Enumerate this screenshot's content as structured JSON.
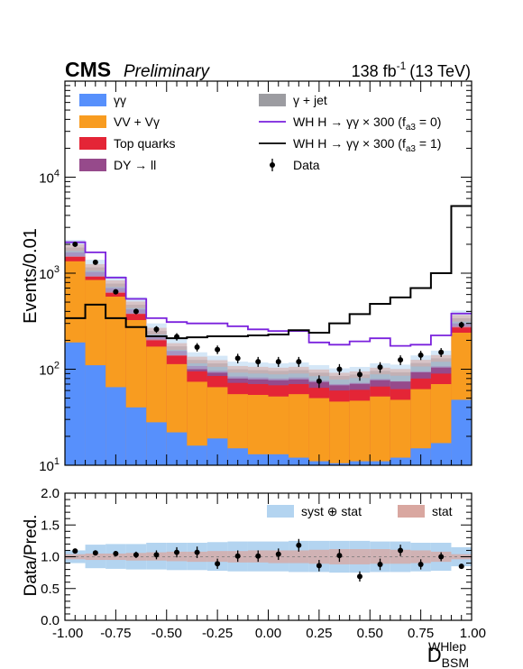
{
  "header": {
    "experiment": "CMS",
    "status": "Preliminary",
    "lumi": "138 fb",
    "lumi_exp": "-1",
    "energy": "(13 TeV)"
  },
  "colors": {
    "gg": "#5790fc",
    "vv": "#f89c20",
    "top": "#e42536",
    "dy": "#964a8b",
    "gjet": "#9c9ca1",
    "sig0": "#7a21dd",
    "sig1": "#000000",
    "syst": "#b3d4f0",
    "stat": "#d9a7a0"
  },
  "chart_data": [
    {
      "type": "bar",
      "subtype": "stacked-histogram",
      "ylabel": "Events/0.01",
      "yscale": "log",
      "ylim": [
        10,
        100000
      ],
      "xlim": [
        -1.0,
        1.0
      ],
      "bin_edges": [
        -1.0,
        -0.9,
        -0.8,
        -0.7,
        -0.6,
        -0.5,
        -0.4,
        -0.3,
        -0.2,
        -0.1,
        0.0,
        0.1,
        0.2,
        0.3,
        0.4,
        0.5,
        0.6,
        0.7,
        0.8,
        0.9,
        1.0
      ],
      "legend_placement": "top",
      "series": [
        {
          "name": "γγ",
          "key": "gg",
          "kind": "stack",
          "values": [
            190,
            110,
            65,
            40,
            28,
            22,
            16,
            19,
            15,
            13,
            13,
            12,
            11,
            10.5,
            11,
            11,
            12,
            15,
            17,
            48
          ]
        },
        {
          "name": "VV + Vγ",
          "key": "vv",
          "kind": "stack",
          "values": [
            1330,
            850,
            570,
            325,
            172,
            113,
            74,
            65,
            55,
            54,
            52,
            55,
            50,
            46,
            47,
            52,
            48,
            62,
            70,
            240
          ]
        },
        {
          "name": "Top quarks",
          "key": "top",
          "kind": "stack",
          "values": [
            1500,
            930,
            640,
            380,
            205,
            140,
            95,
            85,
            72,
            70,
            68,
            70,
            64,
            60,
            61,
            66,
            62,
            80,
            90,
            280
          ]
        },
        {
          "name": "DY → ll",
          "key": "dy",
          "kind": "stack",
          "values": [
            1650,
            1030,
            700,
            420,
            225,
            155,
            108,
            96,
            84,
            82,
            80,
            82,
            76,
            70,
            72,
            79,
            75,
            95,
            107,
            300
          ]
        },
        {
          "name": "γ + jet",
          "key": "gjet",
          "kind": "stack",
          "values": [
            1850,
            1150,
            780,
            470,
            250,
            173,
            125,
            115,
            100,
            98,
            96,
            98,
            92,
            85,
            88,
            96,
            93,
            116,
            130,
            340
          ]
        },
        {
          "name": "WH H → γγ × 300 (f",
          "sub": "a3",
          "tail": " = 0)",
          "key": "sig0",
          "kind": "line",
          "values": [
            2100,
            1650,
            900,
            540,
            340,
            310,
            300,
            300,
            280,
            260,
            250,
            250,
            190,
            180,
            195,
            210,
            175,
            180,
            225,
            380
          ]
        },
        {
          "name": "WH H → γγ × 300 (f",
          "sub": "a3",
          "tail": " = 1)",
          "key": "sig1",
          "kind": "line",
          "values": [
            340,
            470,
            340,
            275,
            220,
            210,
            215,
            220,
            220,
            225,
            230,
            255,
            240,
            300,
            375,
            480,
            560,
            700,
            1000,
            5000
          ]
        },
        {
          "name": "Data",
          "key": "data",
          "kind": "points",
          "values": [
            2000,
            1300,
            640,
            400,
            260,
            218,
            170,
            160,
            130,
            120,
            120,
            120,
            75,
            100,
            88,
            105,
            125,
            140,
            150,
            290
          ]
        }
      ],
      "syst_band_frac": 0.2,
      "stat_band_frac": 0.08
    },
    {
      "type": "scatter",
      "subtype": "ratio",
      "xlabel": "D",
      "xlabel_sub": "BSM",
      "xlabel_sup": "WHlep",
      "ylabel": "Data/Pred.",
      "ylim": [
        0.0,
        2.0
      ],
      "xlim": [
        -1.0,
        1.0
      ],
      "x_ticks": [
        "-1.00",
        "-0.75",
        "-0.50",
        "-0.25",
        "0.00",
        "0.25",
        "0.50",
        "0.75",
        "1.00"
      ],
      "y_ticks": [
        "0.0",
        "0.5",
        "1.0",
        "1.5",
        "2.0"
      ],
      "x": [
        -0.95,
        -0.85,
        -0.75,
        -0.65,
        -0.55,
        -0.45,
        -0.35,
        -0.25,
        -0.15,
        -0.05,
        0.05,
        0.15,
        0.25,
        0.35,
        0.45,
        0.55,
        0.65,
        0.75,
        0.85,
        0.95
      ],
      "values": [
        1.09,
        1.06,
        1.05,
        1.03,
        1.03,
        1.07,
        1.07,
        0.89,
        1.01,
        1.01,
        1.04,
        1.18,
        0.86,
        1.02,
        0.69,
        0.88,
        1.1,
        0.88,
        1.0,
        0.85
      ],
      "errors": [
        0.03,
        0.04,
        0.04,
        0.05,
        0.07,
        0.08,
        0.09,
        0.08,
        0.09,
        0.09,
        0.09,
        0.1,
        0.09,
        0.1,
        0.08,
        0.09,
        0.09,
        0.08,
        0.07,
        0.04
      ],
      "band_legend": [
        {
          "name": "syst ⊕ stat",
          "key": "syst"
        },
        {
          "name": "stat",
          "key": "stat"
        }
      ],
      "syst_band": [
        [
          0.9,
          1.1
        ],
        [
          0.82,
          1.19
        ],
        [
          0.81,
          1.2
        ],
        [
          0.8,
          1.2
        ],
        [
          0.8,
          1.22
        ],
        [
          0.79,
          1.22
        ],
        [
          0.79,
          1.22
        ],
        [
          0.78,
          1.23
        ],
        [
          0.77,
          1.24
        ],
        [
          0.77,
          1.24
        ],
        [
          0.77,
          1.24
        ],
        [
          0.76,
          1.25
        ],
        [
          0.76,
          1.25
        ],
        [
          0.75,
          1.25
        ],
        [
          0.75,
          1.25
        ],
        [
          0.76,
          1.24
        ],
        [
          0.76,
          1.24
        ],
        [
          0.77,
          1.22
        ],
        [
          0.78,
          1.22
        ],
        [
          0.85,
          1.15
        ]
      ],
      "stat_band": [
        [
          0.96,
          1.04
        ],
        [
          0.95,
          1.05
        ],
        [
          0.95,
          1.05
        ],
        [
          0.94,
          1.06
        ],
        [
          0.94,
          1.07
        ],
        [
          0.93,
          1.08
        ],
        [
          0.92,
          1.08
        ],
        [
          0.92,
          1.09
        ],
        [
          0.91,
          1.09
        ],
        [
          0.91,
          1.1
        ],
        [
          0.9,
          1.1
        ],
        [
          0.9,
          1.1
        ],
        [
          0.89,
          1.11
        ],
        [
          0.88,
          1.12
        ],
        [
          0.88,
          1.12
        ],
        [
          0.89,
          1.12
        ],
        [
          0.89,
          1.11
        ],
        [
          0.9,
          1.1
        ],
        [
          0.92,
          1.08
        ],
        [
          0.96,
          1.04
        ]
      ]
    }
  ]
}
